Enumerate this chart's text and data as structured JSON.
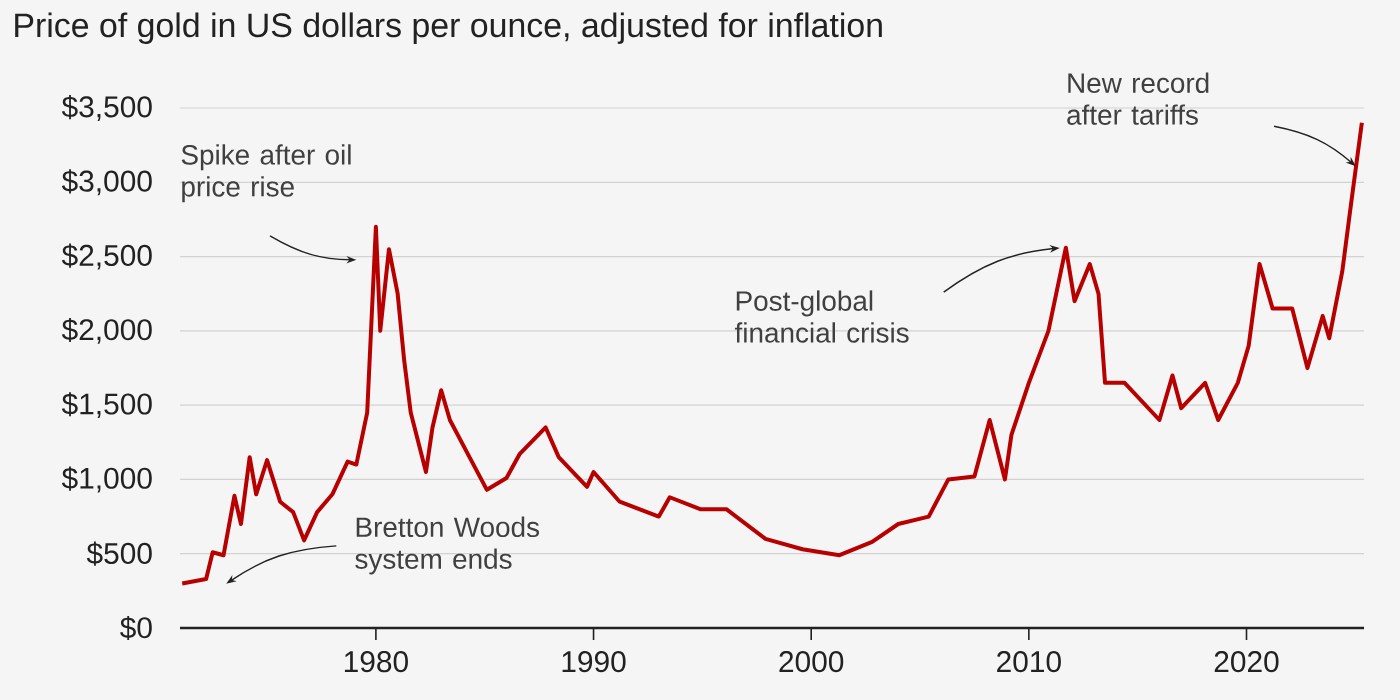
{
  "chart_data": {
    "type": "line",
    "title": "Price of gold in US dollars per ounce, adjusted for inflation",
    "x": [
      1971.1,
      1972.2,
      1972.5,
      1973.0,
      1973.5,
      1973.8,
      1974.2,
      1974.5,
      1975.0,
      1975.6,
      1976.2,
      1976.7,
      1977.3,
      1978.0,
      1978.7,
      1979.1,
      1979.6,
      1980.0,
      1980.2,
      1980.6,
      1981.0,
      1981.3,
      1981.6,
      1982.3,
      1982.6,
      1983.0,
      1983.4,
      1984.3,
      1985.1,
      1986.0,
      1986.6,
      1987.8,
      1988.4,
      1989.7,
      1990.0,
      1991.2,
      1993.0,
      1993.5,
      1994.9,
      1996.1,
      1997.9,
      1999.6,
      2001.3,
      2002.8,
      2004.0,
      2005.4,
      2006.3,
      2007.5,
      2008.2,
      2008.9,
      2009.2,
      2010.0,
      2010.9,
      2011.7,
      2012.1,
      2012.8,
      2013.2,
      2013.5,
      2014.4,
      2016.0,
      2016.6,
      2017.0,
      2018.1,
      2018.7,
      2019.6,
      2020.1,
      2020.6,
      2021.2,
      2022.1,
      2022.8,
      2023.5,
      2023.8,
      2024.4,
      2024.8,
      2025.3
    ],
    "series": [
      {
        "color": "#b80000",
        "values": [
          300,
          330,
          510,
          490,
          890,
          700,
          1150,
          900,
          1130,
          850,
          780,
          590,
          780,
          900,
          1120,
          1100,
          1450,
          2700,
          2000,
          2550,
          2250,
          1800,
          1450,
          1050,
          1350,
          1600,
          1400,
          1150,
          930,
          1010,
          1170,
          1350,
          1150,
          950,
          1050,
          850,
          750,
          880,
          800,
          800,
          600,
          530,
          490,
          580,
          700,
          750,
          1000,
          1020,
          1400,
          1000,
          1300,
          1650,
          2000,
          2560,
          2200,
          2450,
          2250,
          1650,
          1650,
          1400,
          1700,
          1480,
          1650,
          1400,
          1650,
          1900,
          2450,
          2150,
          2150,
          1750,
          2100,
          1950,
          2400,
          2850,
          3400
        ]
      }
    ],
    "xlim": [
      1971,
      2025.4
    ],
    "xticks": [
      1980,
      1990,
      2000,
      2010,
      2020
    ],
    "ylim": [
      0,
      3500
    ],
    "yticks": [
      {
        "value": 0,
        "label": "$0"
      },
      {
        "value": 500,
        "label": "$500"
      },
      {
        "value": 1000,
        "label": "$1,000"
      },
      {
        "value": 1500,
        "label": "$1,500"
      },
      {
        "value": 2000,
        "label": "$2,000"
      },
      {
        "value": 2500,
        "label": "$2,500"
      },
      {
        "value": 3000,
        "label": "$3,000"
      },
      {
        "value": 3500,
        "label": "$3,500"
      }
    ],
    "grid": "y",
    "line_style": "solid",
    "annotations": [
      "Spike after oil price rise",
      "Bretton Woods system ends",
      "Post-global financial crisis",
      "New record after tariffs"
    ]
  }
}
